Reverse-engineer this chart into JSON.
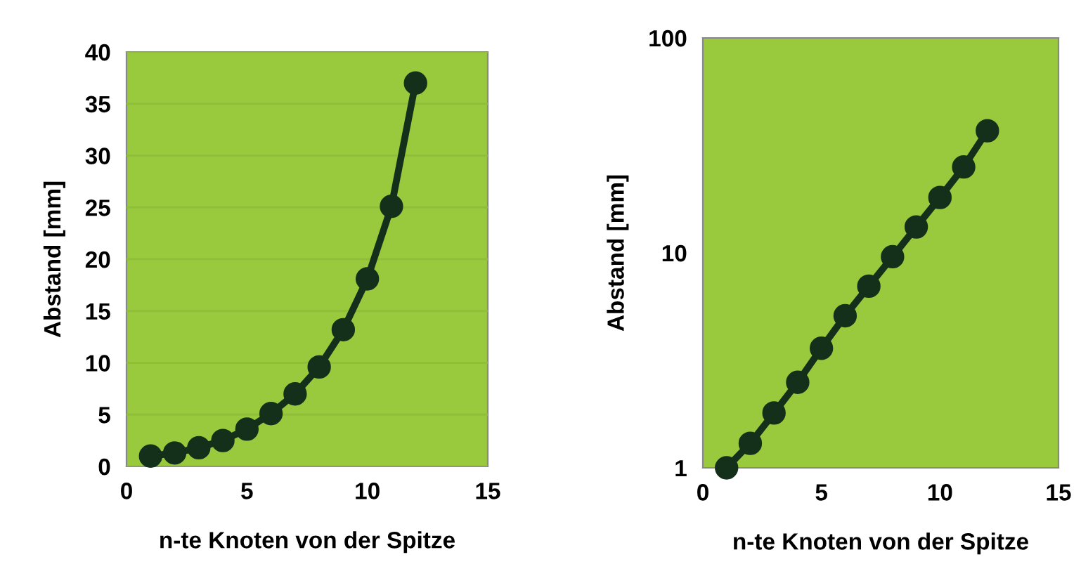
{
  "chart_data": [
    {
      "type": "line",
      "xlabel": "n-te Knoten von der Spitze",
      "ylabel": "Abstand [mm]",
      "x": [
        1,
        2,
        3,
        4,
        5,
        6,
        7,
        8,
        9,
        10,
        11,
        12
      ],
      "series": [
        {
          "color": "#14301a",
          "values": [
            1.0,
            1.3,
            1.8,
            2.5,
            3.6,
            5.1,
            7.0,
            9.6,
            13.2,
            18.1,
            25.1,
            37.0
          ]
        }
      ],
      "xlim": [
        0,
        15
      ],
      "xticks": [
        0,
        5,
        10,
        15
      ],
      "ylim": [
        0,
        40
      ],
      "yticks": [
        0,
        5,
        10,
        15,
        20,
        25,
        30,
        35,
        40
      ],
      "grid": "y",
      "marker": "circle",
      "line_style": "solid"
    },
    {
      "type": "line",
      "xlabel": "n-te Knoten von der Spitze",
      "ylabel": "Abstand [mm]",
      "x": [
        1,
        2,
        3,
        4,
        5,
        6,
        7,
        8,
        9,
        10,
        11,
        12
      ],
      "series": [
        {
          "color": "#14301a",
          "values": [
            1.0,
            1.3,
            1.8,
            2.5,
            3.6,
            5.1,
            7.0,
            9.6,
            13.2,
            18.1,
            25.1,
            37.0
          ]
        }
      ],
      "xlim": [
        0,
        15
      ],
      "xticks": [
        0,
        5,
        10,
        15
      ],
      "ylim": [
        1,
        100
      ],
      "yticks": [
        1,
        10,
        100
      ],
      "log": "y",
      "marker": "circle",
      "line_style": "solid"
    }
  ]
}
